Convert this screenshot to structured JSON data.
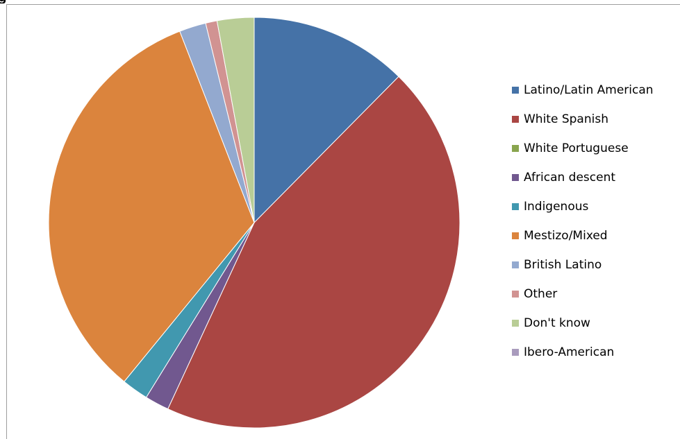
{
  "caption": "g",
  "chart_data": {
    "type": "pie",
    "title": "",
    "start": "top",
    "direction": "clockwise",
    "legend_position": "right",
    "series": [
      {
        "name": "Latino/Latin American",
        "value": 12.4,
        "color": "#4572A7"
      },
      {
        "name": "White Spanish",
        "value": 44.5,
        "color": "#AA4643"
      },
      {
        "name": "White Portuguese",
        "value": 0,
        "color": "#89A54E"
      },
      {
        "name": "African descent",
        "value": 1.9,
        "color": "#71588F"
      },
      {
        "name": "Indigenous",
        "value": 2.1,
        "color": "#4198AF"
      },
      {
        "name": "Mestizo/Mixed",
        "value": 33.2,
        "color": "#DB843D"
      },
      {
        "name": "British Latino",
        "value": 2.1,
        "color": "#93A9CF"
      },
      {
        "name": "Other",
        "value": 0.9,
        "color": "#D19392"
      },
      {
        "name": "Don't know",
        "value": 2.9,
        "color": "#B9CD96"
      },
      {
        "name": "Ibero-American",
        "value": 0,
        "color": "#A99BBD"
      }
    ]
  }
}
